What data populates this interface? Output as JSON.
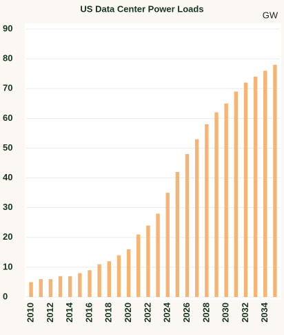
{
  "chart_data": {
    "type": "bar",
    "title": "US Data Center Power Loads",
    "unit_label": "GW",
    "categories": [
      "2010",
      null,
      "2012",
      null,
      "2014",
      null,
      "2016",
      null,
      "2018",
      null,
      "2020",
      null,
      "2022",
      null,
      "2024",
      null,
      "2026",
      null,
      "2028",
      null,
      "2030",
      null,
      "2032",
      null,
      "2034",
      null
    ],
    "values": [
      5,
      6,
      6,
      7,
      7,
      8,
      9,
      11,
      12,
      14,
      16,
      21,
      24,
      28,
      35,
      42,
      48,
      53,
      58,
      62,
      65,
      69,
      72,
      74,
      76,
      78
    ],
    "color": "#f6b474",
    "ylim": [
      0,
      90
    ],
    "yticks": [
      0,
      10,
      20,
      30,
      40,
      50,
      60,
      70,
      80,
      90
    ],
    "grid": true
  }
}
